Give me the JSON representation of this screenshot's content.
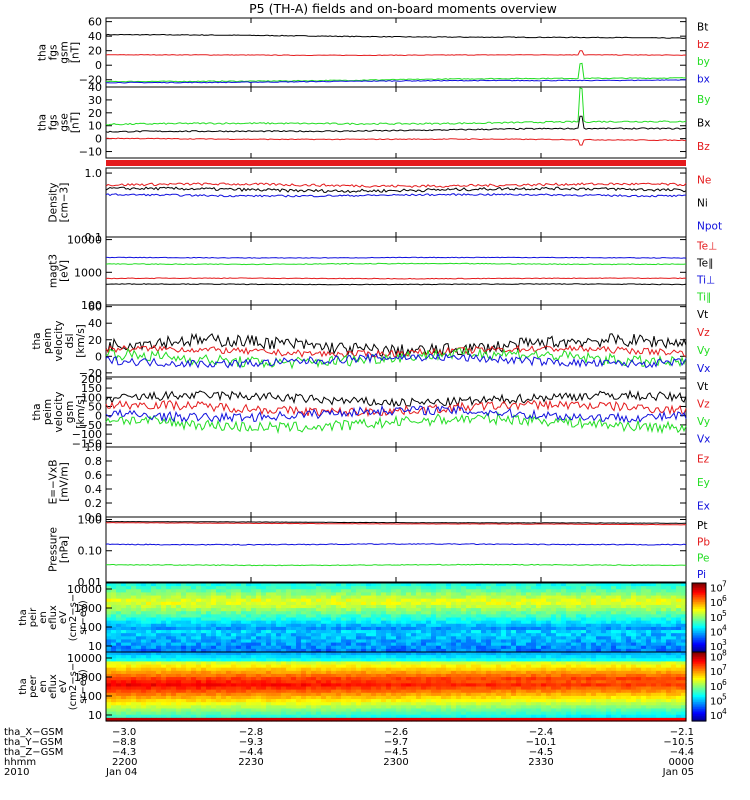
{
  "title": "P5 (TH-A) fields and on-board moments overview",
  "colors": {
    "black": "#000000",
    "red": "#e41a1c",
    "green": "#22dd22",
    "blue": "#1010dd"
  },
  "chart_data": {
    "type": "line",
    "x": [
      "2200",
      "2230",
      "2300",
      "2330",
      "0000"
    ],
    "panels": [
      {
        "ylabel": [
          "tha",
          "fgs",
          "gsm",
          "[nT]"
        ],
        "ticks": [
          "60",
          "40",
          "20",
          "0",
          "−20"
        ],
        "ylim": [
          -30,
          65
        ],
        "scale": "linear",
        "series": [
          {
            "name": "Bt",
            "color": "black",
            "level": 42,
            "drift": -5,
            "noise": 0.5
          },
          {
            "name": "bz",
            "color": "red",
            "level": 14,
            "drift": 0,
            "noise": 0.4,
            "spike": {
              "at": 0.82,
              "amp": 6
            }
          },
          {
            "name": "by",
            "color": "green",
            "level": -23,
            "drift": 6,
            "noise": 0.6,
            "spike": {
              "at": 0.82,
              "amp": 20
            }
          },
          {
            "name": "bx",
            "color": "blue",
            "level": -24,
            "drift": 4,
            "noise": 0.5
          }
        ]
      },
      {
        "ylabel": [
          "tha",
          "fgs",
          "gse",
          "[nT]"
        ],
        "ticks": [
          "40",
          "30",
          "20",
          "10",
          "0",
          "−10"
        ],
        "ylim": [
          -15,
          40
        ],
        "scale": "linear",
        "series": [
          {
            "name": "By",
            "color": "green",
            "level": 11,
            "drift": 2,
            "noise": 0.6,
            "spike": {
              "at": 0.82,
              "amp": 26
            }
          },
          {
            "name": "Bx",
            "color": "black",
            "level": 5,
            "drift": 3,
            "noise": 0.5,
            "spike": {
              "at": 0.82,
              "amp": 10
            }
          },
          {
            "name": "Bz",
            "color": "red",
            "level": 0,
            "drift": -1,
            "noise": 0.3,
            "spike": {
              "at": 0.82,
              "amp": -4
            }
          }
        ]
      },
      {
        "ylabel": [
          "Density",
          "[cm−3]"
        ],
        "ticks": [
          "1.0",
          "0.1"
        ],
        "ylim": [
          0.1,
          1.2
        ],
        "scale": "log",
        "series": [
          {
            "name": "Ne",
            "color": "red",
            "level": 0.65,
            "drift": 0,
            "noise": 0.03
          },
          {
            "name": "Ni",
            "color": "black",
            "level": 0.55,
            "drift": 0,
            "noise": 0.03
          },
          {
            "name": "Npot",
            "color": "blue",
            "level": 0.45,
            "drift": 0,
            "noise": 0.015
          }
        ]
      },
      {
        "ylabel": [
          "magt3",
          "[eV]"
        ],
        "ticks": [
          "10000",
          "1000",
          "100"
        ],
        "ylim": [
          100,
          12000
        ],
        "scale": "log",
        "series": [
          {
            "name": "Te⊥",
            "color": "red",
            "level": 650,
            "drift": 0,
            "noise": 15
          },
          {
            "name": "Te∥",
            "color": "black",
            "level": 430,
            "drift": 0,
            "noise": 10
          },
          {
            "name": "Ti⊥",
            "color": "blue",
            "level": 2800,
            "drift": 0,
            "noise": 60
          },
          {
            "name": "Ti∥",
            "color": "green",
            "level": 1800,
            "drift": 0,
            "noise": 50
          }
        ]
      },
      {
        "ylabel": [
          "tha",
          "peim",
          "velocity",
          "dsl",
          "[km/s]"
        ],
        "ticks": [
          "60",
          "40",
          "20",
          "0",
          "−20"
        ],
        "ylim": [
          -25,
          62
        ],
        "scale": "linear",
        "series": [
          {
            "name": "Vt",
            "color": "black",
            "level": 13,
            "drift": 0,
            "noise": 8
          },
          {
            "name": "Vz",
            "color": "red",
            "level": 6,
            "drift": 0,
            "noise": 4
          },
          {
            "name": "Vy",
            "color": "green",
            "level": -2,
            "drift": 0,
            "noise": 7
          },
          {
            "name": "Vx",
            "color": "blue",
            "level": -5,
            "drift": 0,
            "noise": 5
          }
        ]
      },
      {
        "ylabel": [
          "tha",
          "peim",
          "velocity",
          "gsm",
          "[km/s]"
        ],
        "ticks": [
          "200",
          "150",
          "100",
          "50",
          "0",
          "−50",
          "−100",
          "−150"
        ],
        "ylim": [
          -170,
          210
        ],
        "scale": "linear",
        "series": [
          {
            "name": "Vt",
            "color": "black",
            "level": 90,
            "drift": 0,
            "noise": 25
          },
          {
            "name": "Vz",
            "color": "red",
            "level": 40,
            "drift": 0,
            "noise": 25
          },
          {
            "name": "Vy",
            "color": "green",
            "level": -40,
            "drift": 0,
            "noise": 30
          },
          {
            "name": "Vx",
            "color": "blue",
            "level": 10,
            "drift": 0,
            "noise": 25
          }
        ]
      },
      {
        "ylabel": [
          "E=−VxB",
          "[mV/m]"
        ],
        "ticks": [
          "1.0",
          "0.8",
          "0.6",
          "0.4",
          "0.2",
          "0.0"
        ],
        "ylim": [
          0,
          1
        ],
        "scale": "linear",
        "series": [
          {
            "name": "Ez",
            "color": "red",
            "level": null
          },
          {
            "name": "Ey",
            "color": "green",
            "level": null
          },
          {
            "name": "Ex",
            "color": "blue",
            "level": null
          }
        ]
      },
      {
        "ylabel": [
          "Pressure",
          "[nPa]"
        ],
        "ticks": [
          "1.00",
          "0.10",
          "0.01"
        ],
        "ylim": [
          0.01,
          1.2
        ],
        "scale": "log",
        "series": [
          {
            "name": "Pt",
            "color": "black",
            "level": 0.85,
            "drift": -0.1,
            "noise": 0.01
          },
          {
            "name": "Pb",
            "color": "red",
            "level": 0.78,
            "drift": -0.1,
            "noise": 0.01
          },
          {
            "name": "Pe",
            "color": "green",
            "level": 0.035,
            "drift": 0,
            "noise": 0.001
          },
          {
            "name": "Pi",
            "color": "blue",
            "level": 0.16,
            "drift": 0,
            "noise": 0.005
          }
        ]
      }
    ],
    "spectrograms": [
      {
        "ylabel": [
          "tha",
          "peir",
          "en",
          "eflux",
          "eV",
          "(cm2−s−",
          "sr−eV)"
        ],
        "ticks": [
          "10000",
          "1000",
          "100",
          "10"
        ],
        "colorbar": {
          "ticks": [
            "7",
            "6",
            "5",
            "4",
            "3"
          ],
          "min": 2.6,
          "max": 7.3
        },
        "kind": "ion"
      },
      {
        "ylabel": [
          "tha",
          "peer",
          "en",
          "eflux",
          "eV",
          "(cm2−s−",
          "sr−eV)"
        ],
        "ticks": [
          "10000",
          "1000",
          "100",
          "10"
        ],
        "colorbar": {
          "ticks": [
            "8",
            "7",
            "6",
            "5",
            "4"
          ],
          "min": 3.6,
          "max": 8.3
        },
        "kind": "electron"
      }
    ],
    "orbit": {
      "labels": [
        "tha_X−GSM",
        "tha_Y−GSM",
        "tha_Z−GSM",
        "hhmm",
        "2010"
      ],
      "values": [
        [
          "−3.0",
          "−2.8",
          "−2.6",
          "−2.4",
          "−2.1"
        ],
        [
          "−8.8",
          "−9.3",
          "−9.7",
          "−10.1",
          "−10.5"
        ],
        [
          "−4.3",
          "−4.4",
          "−4.5",
          "−4.5",
          "−4.4"
        ],
        [
          "2200",
          "2230",
          "2300",
          "2330",
          "0000"
        ],
        [
          "Jan 04",
          "",
          "",
          "",
          "Jan 05"
        ]
      ]
    }
  }
}
